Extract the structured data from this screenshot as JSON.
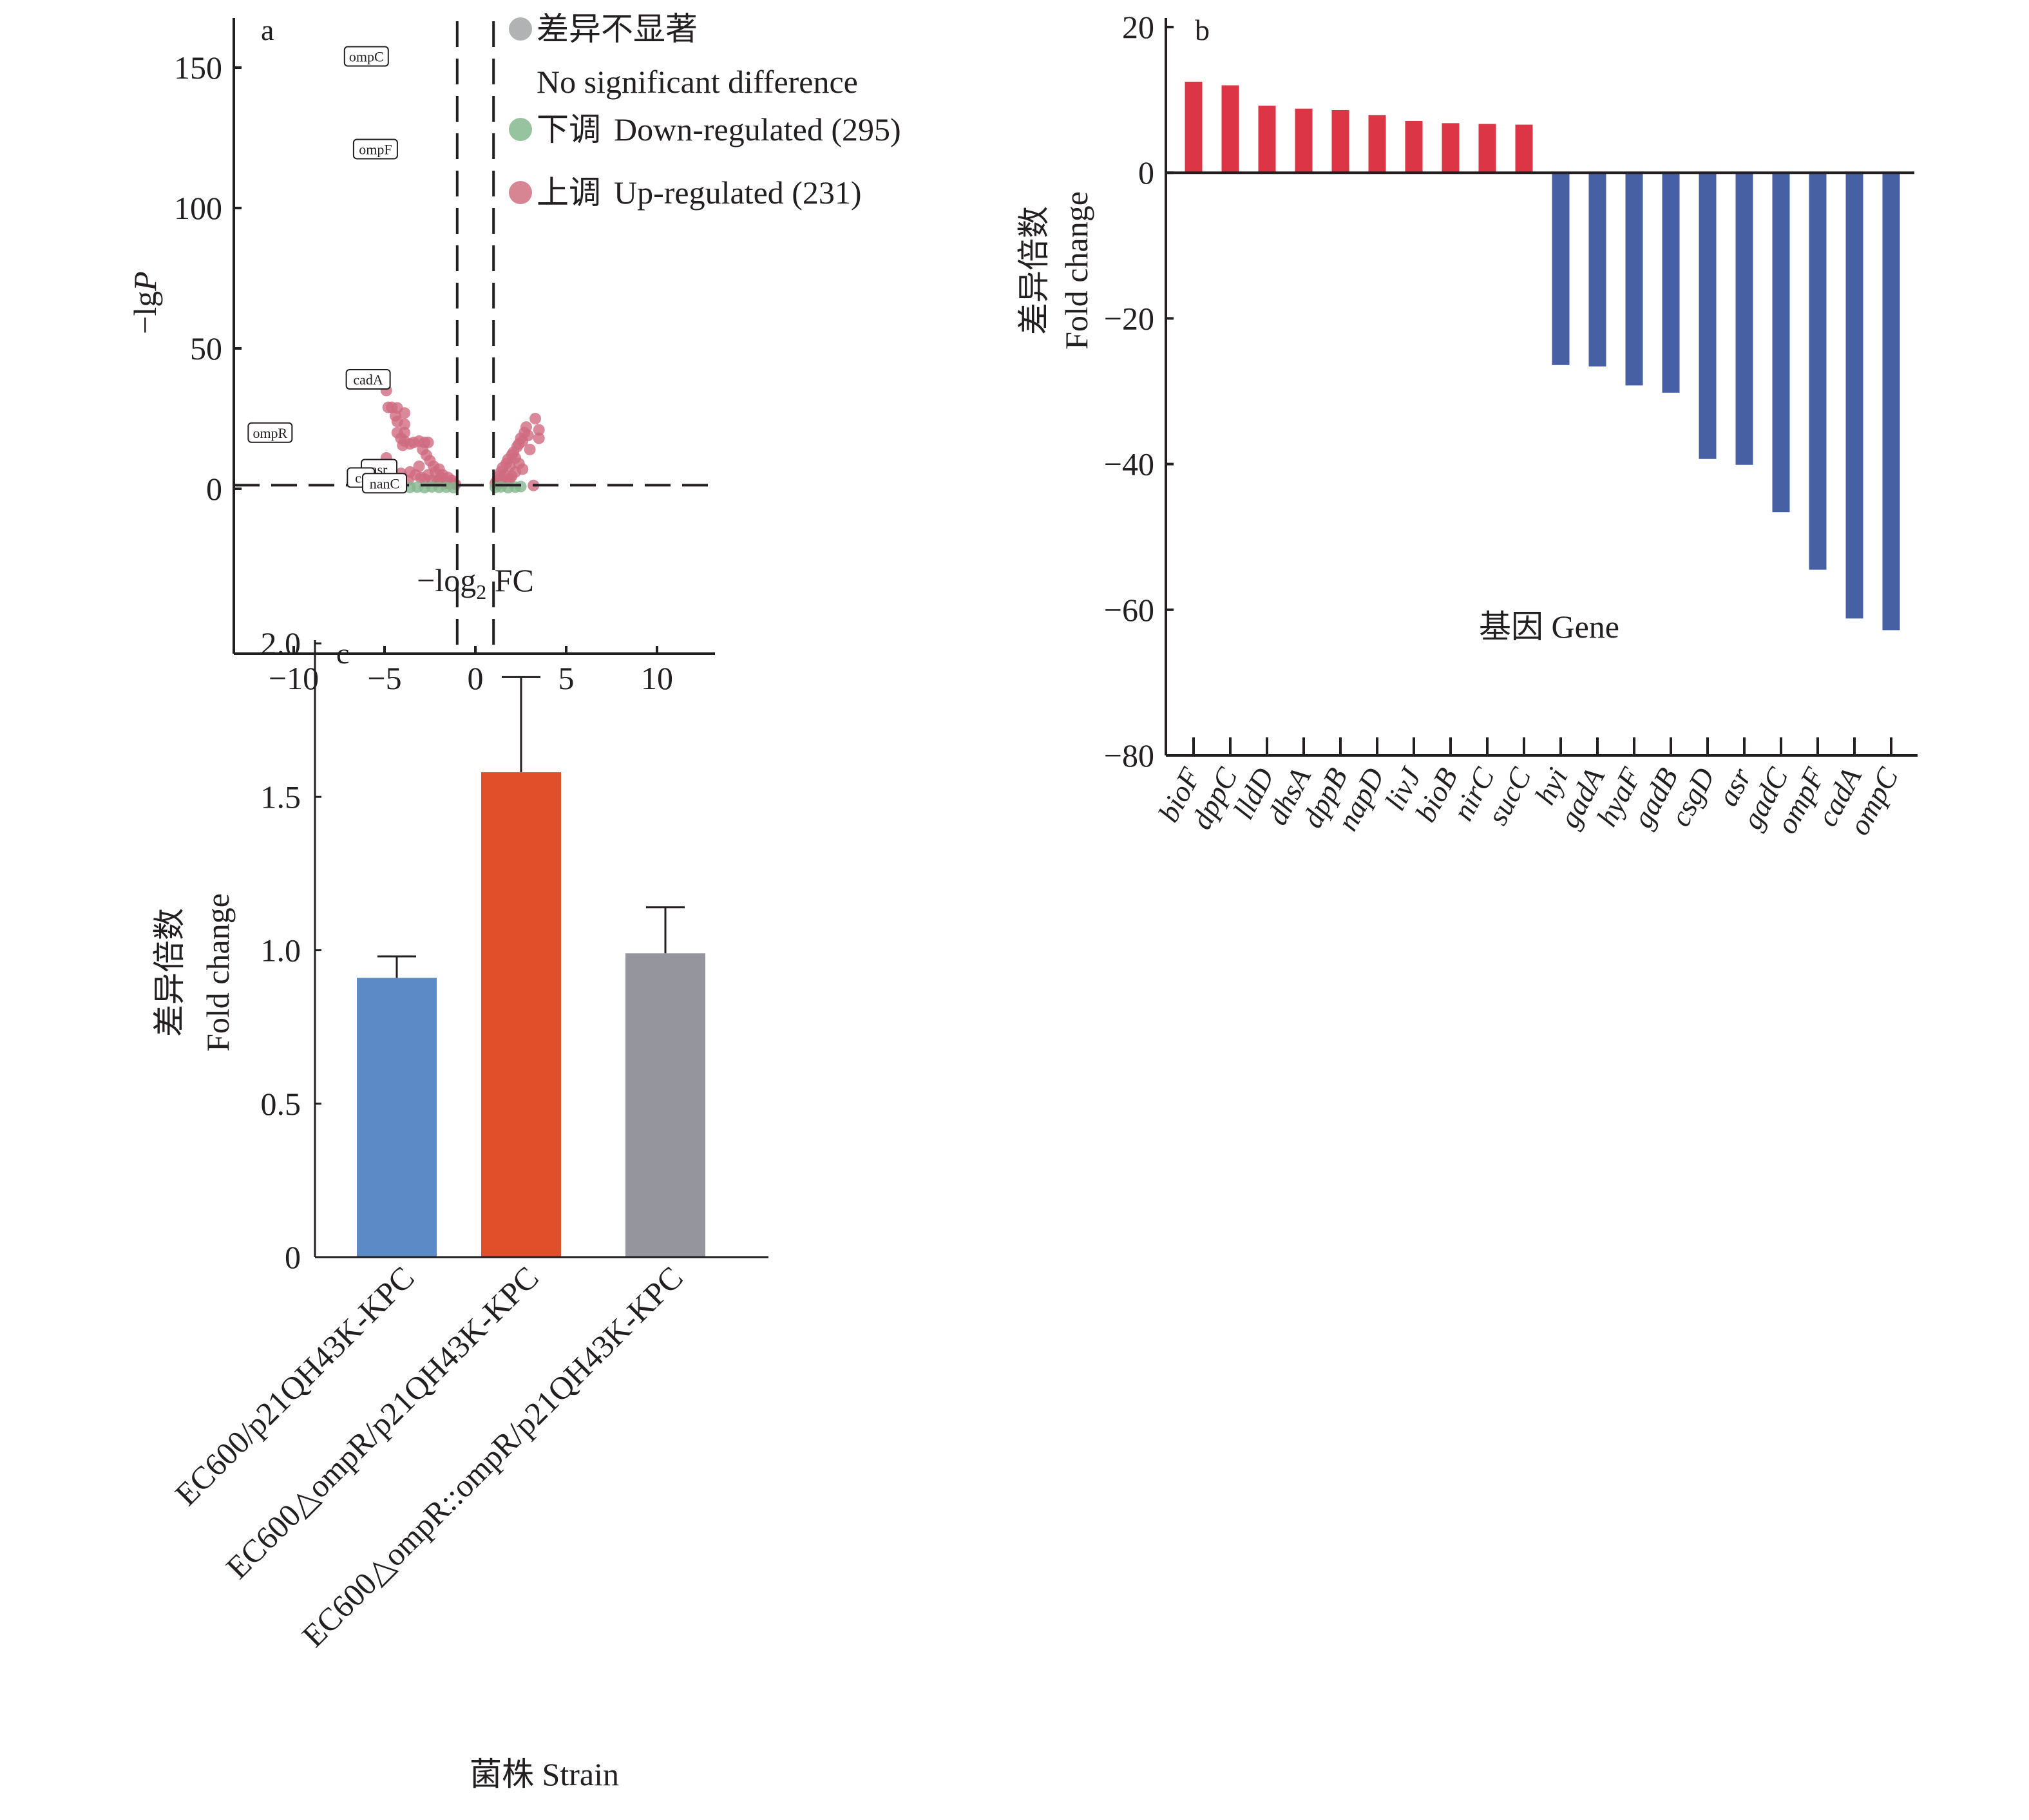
{
  "chart_data": [
    {
      "panel": "a",
      "type": "scatter",
      "title": "",
      "xlabel": "−log2 FC",
      "xlabel_main": "−log",
      "xlabel_sub": "2",
      "xlabel_tail": " FC",
      "ylabel": "−lgP",
      "ylabel_main": "−lg",
      "ylabel_italic": "P",
      "xlim": [
        -13.4,
        13.3
      ],
      "ylim": [
        -7,
        168
      ],
      "xticks": [
        -10,
        -5,
        0,
        5,
        10
      ],
      "xtick_labels": [
        "−10",
        "−5",
        "0",
        "5",
        "10"
      ],
      "yticks": [
        0,
        50,
        100,
        150
      ],
      "ytick_labels": [
        "0",
        "50",
        "100",
        "150"
      ],
      "thresholds": {
        "x": [
          -1,
          1
        ],
        "y": 1.3
      },
      "legend_position": "top-right",
      "legend": [
        {
          "label_cn": "差异不显著",
          "label_en": "No significant difference",
          "color": "#b1b2b4"
        },
        {
          "label_cn": "下调",
          "label_en": "Down-regulated (295)",
          "color": "#98c39f"
        },
        {
          "label_cn": "上调",
          "label_en": "Up-regulated (231)",
          "color": "#d88593"
        }
      ],
      "series": [
        {
          "name": "Up-regulated",
          "count": 231,
          "color": "#cf6b80",
          "points": [
            [
              -4.9,
              35
            ],
            [
              -4.8,
              29
            ],
            [
              -4.6,
              29
            ],
            [
              -4.3,
              28.8
            ],
            [
              -4.4,
              26
            ],
            [
              -3.9,
              27
            ],
            [
              -4.3,
              24
            ],
            [
              -3.9,
              23
            ],
            [
              -4.3,
              20
            ],
            [
              -3.9,
              20
            ],
            [
              -4.1,
              18
            ],
            [
              -3.9,
              17
            ],
            [
              -4.0,
              15.5
            ],
            [
              -3.6,
              16
            ],
            [
              -3.4,
              16.5
            ],
            [
              -3.1,
              17
            ],
            [
              -2.8,
              16.5
            ],
            [
              -2.6,
              16.5
            ],
            [
              -2.9,
              14
            ],
            [
              -2.7,
              12
            ],
            [
              -2.5,
              10
            ],
            [
              -2.3,
              8
            ],
            [
              -2.0,
              7
            ],
            [
              -1.8,
              5
            ],
            [
              -1.5,
              4
            ],
            [
              -1.3,
              3
            ],
            [
              -1.2,
              2
            ],
            [
              -3.6,
              6
            ],
            [
              -3.3,
              5
            ],
            [
              -3.0,
              4
            ],
            [
              -2.8,
              3.5
            ],
            [
              -2.4,
              3
            ],
            [
              -2.1,
              2.5
            ],
            [
              -1.6,
              2
            ],
            [
              -4.9,
              11
            ],
            [
              -4.1,
              5.5
            ],
            [
              -3.7,
              3
            ],
            [
              -2.0,
              3.2
            ],
            [
              -1.4,
              1.8
            ],
            [
              -1.1,
              1.6
            ],
            [
              -2.2,
              6
            ],
            [
              -3.1,
              8
            ],
            [
              -2.6,
              5
            ],
            [
              -1.9,
              4
            ],
            [
              1.1,
              2
            ],
            [
              1.2,
              3
            ],
            [
              1.3,
              4.5
            ],
            [
              1.4,
              6
            ],
            [
              1.5,
              7.5
            ],
            [
              1.6,
              5
            ],
            [
              1.7,
              9
            ],
            [
              1.8,
              10.5
            ],
            [
              1.9,
              8
            ],
            [
              2.0,
              12
            ],
            [
              2.1,
              13
            ],
            [
              2.2,
              11
            ],
            [
              2.3,
              15
            ],
            [
              2.4,
              16
            ],
            [
              2.5,
              18
            ],
            [
              2.6,
              17
            ],
            [
              2.7,
              20
            ],
            [
              2.8,
              22
            ],
            [
              2.9,
              19
            ],
            [
              3.3,
              25
            ],
            [
              3.5,
              21
            ],
            [
              3.5,
              18
            ],
            [
              3.0,
              14
            ],
            [
              2.4,
              9
            ],
            [
              2.2,
              6
            ],
            [
              1.9,
              3.5
            ],
            [
              1.6,
              2.5
            ],
            [
              1.3,
              1.8
            ],
            [
              3.2,
              1.2
            ],
            [
              2.0,
              4.5
            ],
            [
              2.6,
              7
            ],
            [
              1.8,
              3
            ]
          ]
        },
        {
          "name": "Down-regulated",
          "count": 295,
          "color": "#84b78e",
          "points": [
            [
              -4.0,
              0.8
            ],
            [
              -3.6,
              0.5
            ],
            [
              -3.2,
              0.6
            ],
            [
              -2.8,
              0.4
            ],
            [
              -2.4,
              0.7
            ],
            [
              -2.0,
              0.5
            ],
            [
              -1.6,
              0.6
            ],
            [
              -1.2,
              0.4
            ],
            [
              1.1,
              0.5
            ],
            [
              1.4,
              0.7
            ],
            [
              1.8,
              0.4
            ],
            [
              2.2,
              0.6
            ],
            [
              2.5,
              0.8
            ]
          ]
        },
        {
          "name": "No significant difference",
          "color": "#b1b2b4",
          "points": []
        }
      ],
      "annotations": [
        {
          "text": "ompC",
          "x": -6.0,
          "y": 154
        },
        {
          "text": "ompF",
          "x": -5.5,
          "y": 121
        },
        {
          "text": "cadA",
          "x": -5.9,
          "y": 39
        },
        {
          "text": "ompR",
          "x": -11.3,
          "y": 20
        },
        {
          "text": "asr",
          "x": -5.3,
          "y": 7
        },
        {
          "text": "cs",
          "x": -6.3,
          "y": 4
        },
        {
          "text": "nanC",
          "x": -5.0,
          "y": 2
        }
      ]
    },
    {
      "panel": "b",
      "type": "bar",
      "title": "",
      "xlabel": "基因 Gene",
      "ylabel_cn": "差异倍数",
      "ylabel_en": "Fold change",
      "ylim": [
        -80,
        20
      ],
      "yticks": [
        20,
        0,
        -20,
        -40,
        -60,
        -80
      ],
      "ytick_labels": [
        "20",
        "0",
        "−20",
        "−40",
        "−60",
        "−80"
      ],
      "categories": [
        "bioF",
        "dppC",
        "lldD",
        "dhsA",
        "dppB",
        "napD",
        "livJ",
        "bioB",
        "nirC",
        "sucC",
        "hyi",
        "gadA",
        "hyaF",
        "gadB",
        "csgD",
        "asr",
        "gadC",
        "ompF",
        "cadA",
        "ompC"
      ],
      "values": [
        12.5,
        12.0,
        9.2,
        8.8,
        8.6,
        7.9,
        7.1,
        6.8,
        6.7,
        6.6,
        -26.4,
        -26.6,
        -29.2,
        -30.2,
        -39.3,
        -40.1,
        -46.6,
        -54.5,
        -61.2,
        -62.8
      ],
      "colors": {
        "up": "#dc3545",
        "down": "#4760a4"
      },
      "grid": false
    },
    {
      "panel": "c",
      "type": "bar",
      "title": "",
      "xlabel": "菌株 Strain",
      "ylabel_cn": "差异倍数",
      "ylabel_en": "Fold change",
      "ylim": [
        0,
        2.0
      ],
      "yticks": [
        0,
        0.5,
        1.0,
        1.5,
        2.0
      ],
      "ytick_labels": [
        "0",
        "0.5",
        "1.0",
        "1.5",
        "2.0"
      ],
      "categories": [
        "EC600/p21QH43K-KPC",
        "EC600△ompR/p21QH43K-KPC",
        "EC600△ompR::ompR/p21QH43K-KPC"
      ],
      "values": [
        0.91,
        1.58,
        0.99
      ],
      "error_upper": [
        0.98,
        1.89,
        1.14
      ],
      "colors": [
        "#5b8ac6",
        "#e04e2a",
        "#95959d"
      ],
      "grid": false
    }
  ]
}
